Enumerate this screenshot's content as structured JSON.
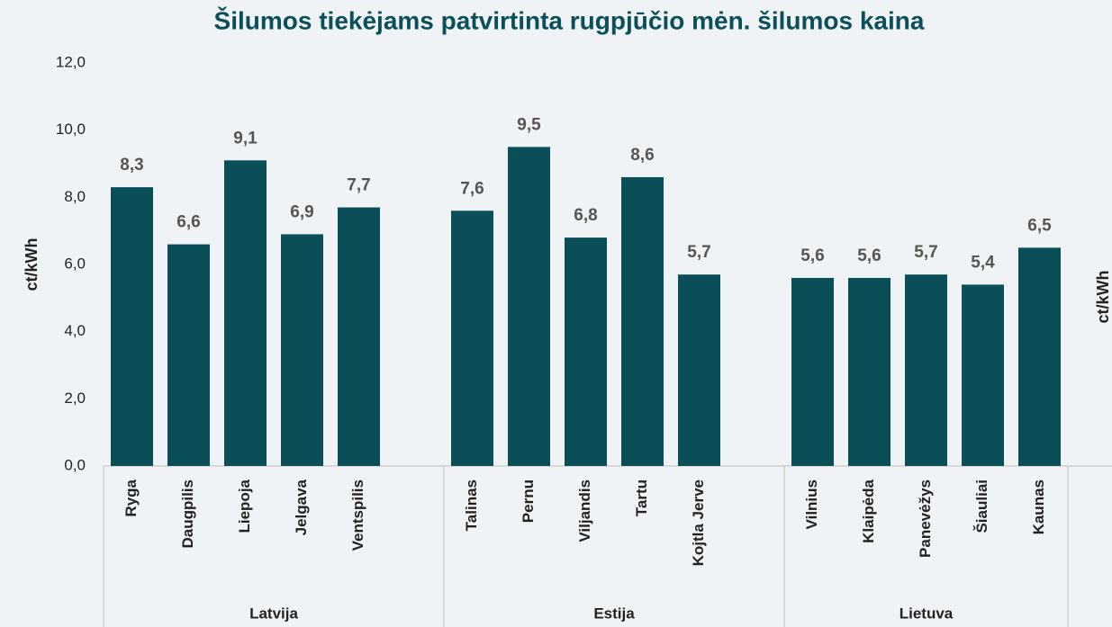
{
  "chart_data": {
    "type": "bar",
    "title": "Šilumos tiekėjams patvirtinta rugpjūčio mėn. šilumos kaina",
    "ylabel": "ct/kWh",
    "y2label": "ct/kWh",
    "categories": [
      "Ryga",
      "Daugpilis",
      "Liepoja",
      "Jelgava",
      "Ventspilis",
      null,
      "Talinas",
      "Pernu",
      "Viljandis",
      "Tartu",
      "Kojtla Jerve",
      null,
      "Vilnius",
      "Klaipėda",
      "Panevėžys",
      "Šiauliai",
      "Kaunas"
    ],
    "groups": [
      "Latvija",
      "Estija",
      "Lietuva"
    ],
    "values": [
      8.3,
      6.6,
      9.1,
      6.9,
      7.7,
      null,
      7.6,
      9.5,
      6.8,
      8.6,
      5.7,
      null,
      5.6,
      5.6,
      5.7,
      5.4,
      6.5
    ],
    "value_labels": [
      "8,3",
      "6,6",
      "9,1",
      "6,9",
      "7,7",
      null,
      "7,6",
      "9,5",
      "6,8",
      "8,6",
      "5,7",
      null,
      "5,6",
      "5,6",
      "5,7",
      "5,4",
      "6,5"
    ],
    "color": "#0a4f57",
    "ylim": [
      0,
      12
    ],
    "yticks": [
      {
        "value": 0,
        "label": "0,0"
      },
      {
        "value": 2,
        "label": "2,0"
      },
      {
        "value": 4,
        "label": "4,0"
      },
      {
        "value": 6,
        "label": "6,0"
      },
      {
        "value": 8,
        "label": "8,0"
      },
      {
        "value": 10,
        "label": "10,0"
      },
      {
        "value": 12,
        "label": "12,0"
      }
    ],
    "grid": false
  }
}
